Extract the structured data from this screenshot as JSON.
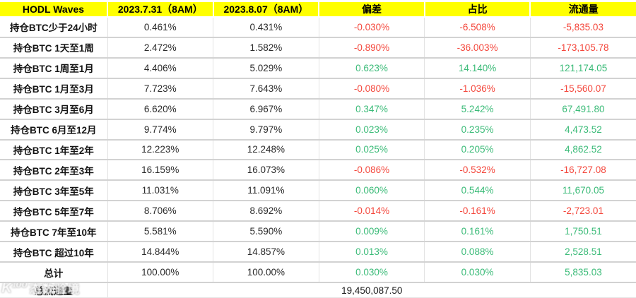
{
  "table": {
    "columns": [
      "HODL Waves",
      "2023.7.31（8AM）",
      "2023.8.07（8AM）",
      "偏差",
      "占比",
      "流通量"
    ],
    "rows": [
      {
        "cells": [
          "持仓BTC少于24小时",
          "0.461%",
          "0.431%",
          "-0.030%",
          "-6.508%",
          "-5,835.03"
        ],
        "trend": "down"
      },
      {
        "cells": [
          "持仓BTC 1天至1周",
          "2.472%",
          "1.582%",
          "-0.890%",
          "-36.003%",
          "-173,105.78"
        ],
        "trend": "down"
      },
      {
        "cells": [
          "持仓BTC 1周至1月",
          "4.406%",
          "5.029%",
          "0.623%",
          "14.140%",
          "121,174.05"
        ],
        "trend": "up"
      },
      {
        "cells": [
          "持仓BTC 1月至3月",
          "7.723%",
          "7.643%",
          "-0.080%",
          "-1.036%",
          "-15,560.07"
        ],
        "trend": "down"
      },
      {
        "cells": [
          "持仓BTC 3月至6月",
          "6.620%",
          "6.967%",
          "0.347%",
          "5.242%",
          "67,491.80"
        ],
        "trend": "up"
      },
      {
        "cells": [
          "持仓BTC 6月至12月",
          "9.774%",
          "9.797%",
          "0.023%",
          "0.235%",
          "4,473.52"
        ],
        "trend": "up"
      },
      {
        "cells": [
          "持仓BTC 1年至2年",
          "12.223%",
          "12.248%",
          "0.025%",
          "0.205%",
          "4,862.52"
        ],
        "trend": "up"
      },
      {
        "cells": [
          "持仓BTC 2年至3年",
          "16.159%",
          "16.073%",
          "-0.086%",
          "-0.532%",
          "-16,727.08"
        ],
        "trend": "down"
      },
      {
        "cells": [
          "持仓BTC 3年至5年",
          "11.031%",
          "11.091%",
          "0.060%",
          "0.544%",
          "11,670.05"
        ],
        "trend": "up"
      },
      {
        "cells": [
          "持仓BTC 5年至7年",
          "8.706%",
          "8.692%",
          "-0.014%",
          "-0.161%",
          "-2,723.01"
        ],
        "trend": "down"
      },
      {
        "cells": [
          "持仓BTC 7年至10年",
          "5.581%",
          "5.590%",
          "0.009%",
          "0.161%",
          "1,750.51"
        ],
        "trend": "up"
      },
      {
        "cells": [
          "持仓BTC 超过10年",
          "14.844%",
          "14.857%",
          "0.013%",
          "0.088%",
          "2,528.51"
        ],
        "trend": "up"
      },
      {
        "cells": [
          "总计",
          "100.00%",
          "100.00%",
          "0.030%",
          "0.030%",
          "5,835.03"
        ],
        "trend": "up",
        "is_total": true
      }
    ],
    "footer": {
      "label": "总流通量",
      "value": "19,450,087.50"
    }
  },
  "watermark": {
    "logo": "K¹⁰⁰",
    "text": "态数验境"
  },
  "colors": {
    "header_background": "#ffff00",
    "positive": "#3bbb78",
    "negative": "#f4473c",
    "grid_horizontal": "#d2d2d2",
    "grid_vertical": "#e2e2e2",
    "text": "#141414"
  },
  "chart_data": {
    "type": "table",
    "title": "HODL Waves",
    "columns": [
      "HODL Waves",
      "2023.7.31（8AM）",
      "2023.8.07（8AM）",
      "偏差",
      "占比",
      "流通量"
    ],
    "categories": [
      "持仓BTC少于24小时",
      "持仓BTC 1天至1周",
      "持仓BTC 1周至1月",
      "持仓BTC 1月至3月",
      "持仓BTC 3月至6月",
      "持仓BTC 6月至12月",
      "持仓BTC 1年至2年",
      "持仓BTC 2年至3年",
      "持仓BTC 3年至5年",
      "持仓BTC 5年至7年",
      "持仓BTC 7年至10年",
      "持仓BTC 超过10年",
      "总计"
    ],
    "series": [
      {
        "name": "2023.7.31（8AM）",
        "values": [
          0.461,
          2.472,
          4.406,
          7.723,
          6.62,
          9.774,
          12.223,
          16.159,
          11.031,
          8.706,
          5.581,
          14.844,
          100.0
        ],
        "unit": "%"
      },
      {
        "name": "2023.8.07（8AM）",
        "values": [
          0.431,
          1.582,
          5.029,
          7.643,
          6.967,
          9.797,
          12.248,
          16.073,
          11.091,
          8.692,
          5.59,
          14.857,
          100.0
        ],
        "unit": "%"
      },
      {
        "name": "偏差",
        "values": [
          -0.03,
          -0.89,
          0.623,
          -0.08,
          0.347,
          0.023,
          0.025,
          -0.086,
          0.06,
          -0.014,
          0.009,
          0.013,
          0.03
        ],
        "unit": "%"
      },
      {
        "name": "占比",
        "values": [
          -6.508,
          -36.003,
          14.14,
          -1.036,
          5.242,
          0.235,
          0.205,
          -0.532,
          0.544,
          -0.161,
          0.161,
          0.088,
          0.03
        ],
        "unit": "%"
      },
      {
        "name": "流通量",
        "values": [
          -5835.03,
          -173105.78,
          121174.05,
          -15560.07,
          67491.8,
          4473.52,
          4862.52,
          -16727.08,
          11670.05,
          -2723.01,
          1750.51,
          2528.51,
          5835.03
        ],
        "unit": "BTC"
      }
    ],
    "annotations": [
      {
        "label": "总流通量",
        "value": 19450087.5
      }
    ],
    "legend_position": "none",
    "grid": true
  }
}
